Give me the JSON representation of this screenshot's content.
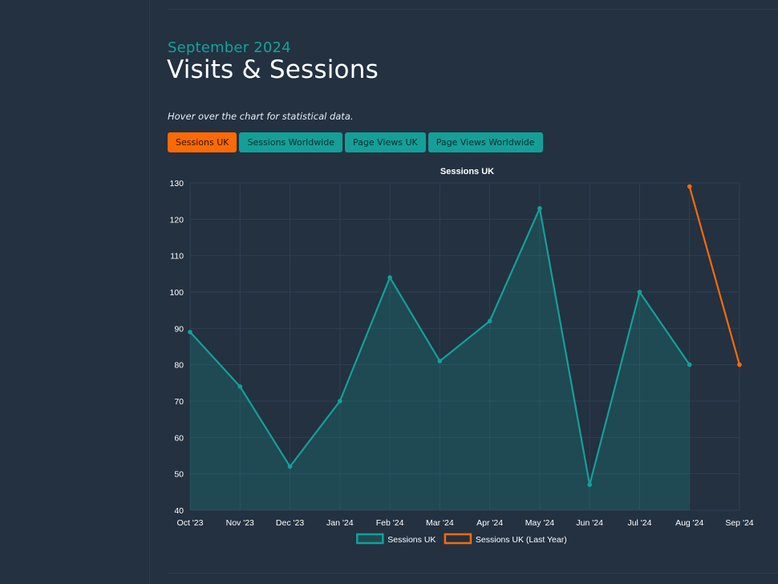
{
  "header": {
    "subtitle": "September 2024",
    "title": "Visits & Sessions",
    "hint": "Hover over the chart for statistical data."
  },
  "buttons": [
    {
      "label": "Sessions UK",
      "active": true
    },
    {
      "label": "Sessions Worldwide",
      "active": false
    },
    {
      "label": "Page Views UK",
      "active": false
    },
    {
      "label": "Page Views Worldwide",
      "active": false
    }
  ],
  "colors": {
    "background": "#233141",
    "teal": "#14a098",
    "orange": "#fd6a05"
  },
  "chart_data": {
    "type": "line",
    "title": "Sessions UK",
    "categories": [
      "Oct '23",
      "Nov '23",
      "Dec '23",
      "Jan '24",
      "Feb '24",
      "Mar '24",
      "Apr '24",
      "May '24",
      "Jun '24",
      "Jul '24",
      "Aug '24",
      "Sep '24"
    ],
    "ylim": [
      40,
      130
    ],
    "yticks": [
      40,
      50,
      60,
      70,
      80,
      90,
      100,
      110,
      120,
      130
    ],
    "grid": true,
    "legend_position": "bottom",
    "series": [
      {
        "name": "Sessions UK",
        "color": "#14a098",
        "fill": true,
        "values": [
          89,
          74,
          52,
          70,
          104,
          81,
          92,
          123,
          47,
          100,
          80,
          null
        ]
      },
      {
        "name": "Sessions UK (Last Year)",
        "color": "#fd6a05",
        "fill": false,
        "values": [
          null,
          null,
          null,
          null,
          null,
          null,
          null,
          null,
          null,
          null,
          129,
          80
        ]
      }
    ]
  }
}
